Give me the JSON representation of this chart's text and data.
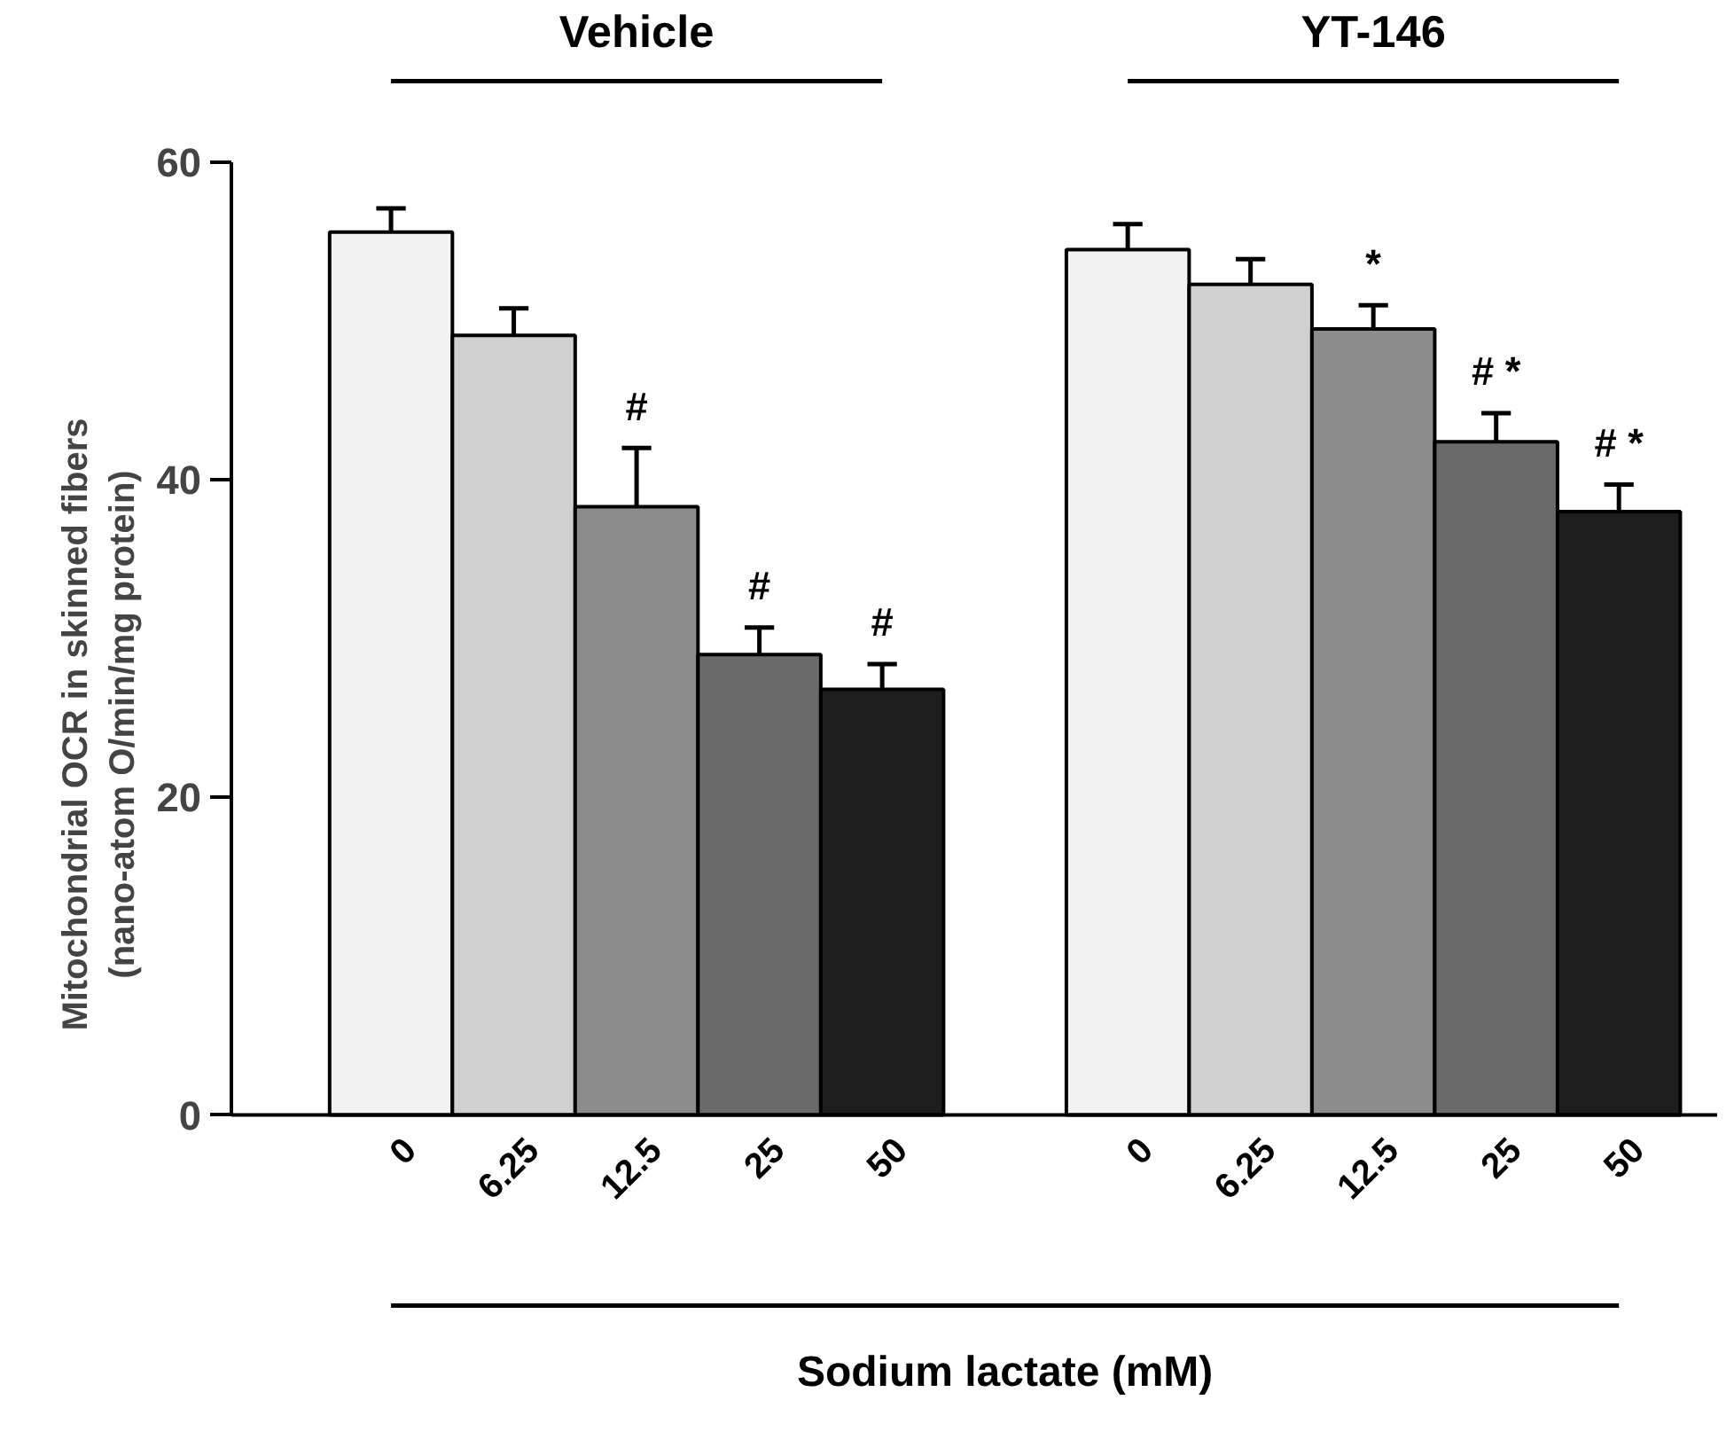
{
  "chart_data": {
    "type": "bar",
    "xlabel": "Sodium lactate (mM)",
    "ylabel": "Mitochondrial OCR in skinned fibers\n(nano-atom O/min/mg protein)",
    "categories": [
      "0",
      "6.25",
      "12.5",
      "25",
      "50",
      "0",
      "6.25",
      "12.5",
      "25",
      "50"
    ],
    "values": [
      55.6,
      49.1,
      38.3,
      29.0,
      26.8,
      54.5,
      52.3,
      49.5,
      42.4,
      38.0
    ],
    "errors": [
      1.5,
      1.7,
      3.7,
      1.7,
      1.6,
      1.6,
      1.6,
      1.5,
      1.8,
      1.7
    ],
    "value_labels": [
      null,
      null,
      "#",
      "#",
      "#",
      null,
      null,
      "*",
      "# *",
      "# *"
    ],
    "colors": [
      "#f2f2f2",
      "#d0d0d0",
      "#8c8c8c",
      "#6a6a6a",
      "#1e1e1e",
      "#f2f2f2",
      "#d0d0d0",
      "#8c8c8c",
      "#6a6a6a",
      "#1e1e1e"
    ],
    "annotations": [
      "Vehicle",
      "YT-146"
    ],
    "ylim": [
      0,
      60
    ],
    "yticks": [
      0,
      20,
      40,
      60
    ],
    "grid": false
  }
}
